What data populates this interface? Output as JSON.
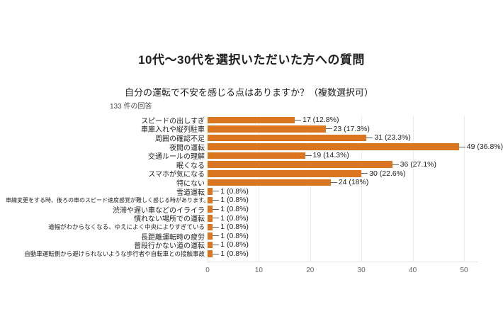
{
  "page": {
    "background": "#ffffff"
  },
  "header": {
    "title": "10代～30代を選択いただいた方への質問",
    "question": "自分の運転で不安を感じる点はありますか？（複数選択可）",
    "response_count": "133 件の回答"
  },
  "chart_data": {
    "type": "bar",
    "orientation": "horizontal",
    "title": "自分の運転で不安を感じる点はありますか？（複数選択可）",
    "categories": [
      "スピードの出しすぎ",
      "車庫入れや縦列駐車",
      "周囲の確認不足",
      "夜間の運転",
      "交通ルールの理解",
      "眠くなる",
      "スマホが気になる",
      "特にない",
      "雪道運転",
      "車線変更をする時、後ろの車のスピード速度感覚が難しく感じる時があります。",
      "渋滞や遅い車などのイライラ",
      "慣れない場所での運転",
      "道幅がわからなくなる、ゆえによく中央によりすぎている",
      "長距離運転時の疲労",
      "普段行かない道の運転",
      "自動車運転側から避けられないような歩行者や自転車との接触事故"
    ],
    "values": [
      17,
      23,
      31,
      49,
      19,
      36,
      30,
      24,
      1,
      1,
      1,
      1,
      1,
      1,
      1,
      1
    ],
    "value_labels": [
      "17 (12.8%)",
      "23 (17.3%)",
      "31 (23.3%)",
      "49 (36.8%)",
      "19 (14.3%)",
      "36 (27.1%)",
      "30 (22.6%)",
      "24 (18%)",
      "1 (0.8%)",
      "1 (0.8%)",
      "1 (0.8%)",
      "1 (0.8%)",
      "1 (0.8%)",
      "1 (0.8%)",
      "1 (0.8%)",
      "1 (0.8%)"
    ],
    "x_ticks": [
      0,
      10,
      20,
      30,
      40,
      50
    ],
    "xlim": [
      0,
      52.5
    ],
    "bar_color": "#D9761F",
    "grid": true,
    "legend": "none"
  }
}
